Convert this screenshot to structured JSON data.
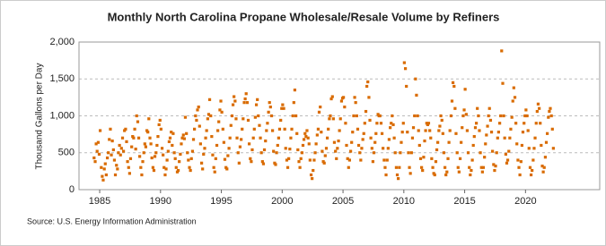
{
  "chart_data": {
    "type": "scatter",
    "title": "Monthly North Carolina Propane Wholesale/Resale Volume by Refiners",
    "y_label": "Thousand Gallons per Day",
    "source": "Source: U.S. Energy Information Administration",
    "color": "#d96b00",
    "grid": true,
    "xlim": [
      1983.3,
      2026.1
    ],
    "xticks": [
      1985,
      1990,
      1995,
      2000,
      2005,
      2010,
      2015,
      2020
    ],
    "ylim": [
      0,
      2000
    ],
    "yticks": [
      0,
      500,
      {
        "value": 1000,
        "label": "1,000"
      },
      {
        "value": 1500,
        "label": "1,500"
      },
      {
        "value": 2000,
        "label": "2,000"
      }
    ],
    "x": [
      1984.54,
      1984.63,
      1984.71,
      1984.79,
      1984.88,
      1984.96,
      1985.04,
      1985.13,
      1985.21,
      1985.29,
      1985.38,
      1985.46,
      1985.54,
      1985.63,
      1985.71,
      1985.79,
      1985.88,
      1985.96,
      1986.04,
      1986.13,
      1986.21,
      1986.29,
      1986.38,
      1986.46,
      1986.54,
      1986.63,
      1986.71,
      1986.79,
      1986.88,
      1986.96,
      1987.04,
      1987.13,
      1987.21,
      1987.29,
      1987.38,
      1987.46,
      1987.54,
      1987.63,
      1987.71,
      1987.79,
      1987.88,
      1987.96,
      1988.04,
      1988.13,
      1988.21,
      1988.29,
      1988.38,
      1988.46,
      1988.54,
      1988.63,
      1988.71,
      1988.79,
      1988.88,
      1988.96,
      1989.04,
      1989.13,
      1989.21,
      1989.29,
      1989.38,
      1989.46,
      1989.54,
      1989.63,
      1989.71,
      1989.79,
      1989.88,
      1989.96,
      1990.04,
      1990.13,
      1990.21,
      1990.29,
      1990.38,
      1990.46,
      1990.54,
      1990.63,
      1990.71,
      1990.79,
      1990.88,
      1990.96,
      1991.04,
      1991.13,
      1991.21,
      1991.29,
      1991.38,
      1991.46,
      1991.54,
      1991.63,
      1991.71,
      1991.79,
      1991.88,
      1991.96,
      1992.04,
      1992.13,
      1992.21,
      1992.29,
      1992.38,
      1992.46,
      1992.54,
      1992.63,
      1992.71,
      1992.79,
      1992.88,
      1992.96,
      1993.04,
      1993.13,
      1993.21,
      1993.29,
      1993.38,
      1993.46,
      1993.54,
      1993.63,
      1993.71,
      1993.79,
      1993.88,
      1993.96,
      1994.04,
      1994.13,
      1994.21,
      1994.29,
      1994.38,
      1994.46,
      1994.54,
      1994.63,
      1994.71,
      1994.79,
      1994.88,
      1994.96,
      1995.04,
      1995.13,
      1995.21,
      1995.29,
      1995.38,
      1995.46,
      1995.54,
      1995.63,
      1995.71,
      1995.79,
      1995.88,
      1995.96,
      1996.04,
      1996.13,
      1996.21,
      1996.29,
      1996.38,
      1996.46,
      1996.54,
      1996.63,
      1996.71,
      1996.79,
      1996.88,
      1996.96,
      1997.04,
      1997.13,
      1997.21,
      1997.29,
      1997.38,
      1997.46,
      1997.54,
      1997.63,
      1997.71,
      1997.79,
      1997.88,
      1997.96,
      1998.04,
      1998.13,
      1998.21,
      1998.29,
      1998.38,
      1998.46,
      1998.54,
      1998.63,
      1998.71,
      1998.79,
      1998.88,
      1998.96,
      1999.04,
      1999.13,
      1999.21,
      1999.29,
      1999.38,
      1999.46,
      1999.54,
      1999.63,
      1999.71,
      1999.79,
      1999.88,
      1999.96,
      2000.04,
      2000.13,
      2000.21,
      2000.29,
      2000.38,
      2000.46,
      2000.54,
      2000.63,
      2000.71,
      2000.79,
      2000.88,
      2000.96,
      2001.04,
      2001.13,
      2001.21,
      2001.29,
      2001.38,
      2001.46,
      2001.54,
      2001.63,
      2001.71,
      2001.79,
      2001.88,
      2001.96,
      2002.04,
      2002.13,
      2002.21,
      2002.29,
      2002.38,
      2002.46,
      2002.54,
      2002.63,
      2002.71,
      2002.79,
      2002.88,
      2002.96,
      2003.04,
      2003.13,
      2003.21,
      2003.29,
      2003.38,
      2003.46,
      2003.54,
      2003.63,
      2003.71,
      2003.79,
      2003.88,
      2003.96,
      2004.04,
      2004.13,
      2004.21,
      2004.29,
      2004.38,
      2004.46,
      2004.54,
      2004.63,
      2004.71,
      2004.79,
      2004.88,
      2004.96,
      2005.04,
      2005.13,
      2005.21,
      2005.29,
      2005.38,
      2005.46,
      2005.54,
      2005.63,
      2005.71,
      2005.79,
      2005.88,
      2005.96,
      2006.04,
      2006.13,
      2006.21,
      2006.29,
      2006.38,
      2006.46,
      2006.54,
      2006.63,
      2006.71,
      2006.79,
      2006.88,
      2006.96,
      2007.04,
      2007.13,
      2007.21,
      2007.29,
      2007.38,
      2007.46,
      2007.54,
      2007.63,
      2007.71,
      2007.79,
      2007.88,
      2007.96,
      2008.04,
      2008.13,
      2008.21,
      2008.29,
      2008.38,
      2008.46,
      2008.54,
      2008.63,
      2008.71,
      2008.79,
      2008.88,
      2008.96,
      2009.04,
      2009.13,
      2009.21,
      2009.29,
      2009.38,
      2009.46,
      2009.54,
      2009.63,
      2009.71,
      2009.79,
      2009.88,
      2009.96,
      2010.04,
      2010.13,
      2010.21,
      2010.29,
      2010.38,
      2010.46,
      2010.54,
      2010.63,
      2010.71,
      2010.79,
      2010.88,
      2010.96,
      2011.04,
      2011.13,
      2011.21,
      2011.29,
      2011.38,
      2011.46,
      2011.54,
      2011.63,
      2011.71,
      2011.79,
      2011.88,
      2011.96,
      2012.04,
      2012.13,
      2012.21,
      2012.29,
      2012.38,
      2012.46,
      2012.54,
      2012.63,
      2012.71,
      2012.79,
      2012.88,
      2012.96,
      2013.04,
      2013.13,
      2013.21,
      2013.29,
      2013.38,
      2013.46,
      2013.54,
      2013.63,
      2013.71,
      2013.79,
      2013.88,
      2013.96,
      2014.04,
      2014.13,
      2014.21,
      2014.29,
      2014.38,
      2014.46,
      2014.54,
      2014.63,
      2014.71,
      2014.79,
      2014.88,
      2014.96,
      2015.04,
      2015.13,
      2015.21,
      2015.29,
      2015.38,
      2015.46,
      2015.54,
      2015.63,
      2015.71,
      2015.79,
      2015.88,
      2015.96,
      2016.04,
      2016.13,
      2016.21,
      2016.29,
      2016.38,
      2016.46,
      2016.54,
      2016.63,
      2016.71,
      2016.79,
      2016.88,
      2016.96,
      2017.04,
      2017.13,
      2017.21,
      2017.29,
      2017.38,
      2017.46,
      2017.54,
      2017.63,
      2017.71,
      2017.79,
      2017.88,
      2017.96,
      2018.04,
      2018.13,
      2018.21,
      2018.29,
      2018.38,
      2018.46,
      2018.54,
      2018.63,
      2018.71,
      2018.79,
      2018.88,
      2018.96,
      2019.04,
      2019.13,
      2019.21,
      2019.29,
      2019.38,
      2019.46,
      2019.54,
      2019.63,
      2019.71,
      2019.79,
      2019.88,
      2019.96,
      2020.04,
      2020.13,
      2020.21,
      2020.29,
      2020.38,
      2020.46,
      2020.54,
      2020.63,
      2020.71,
      2020.79,
      2020.88,
      2020.96,
      2021.04,
      2021.13,
      2021.21,
      2021.29,
      2021.38,
      2021.46,
      2021.54,
      2021.63,
      2021.71,
      2021.79,
      2021.88,
      2021.96,
      2022.04,
      2022.13,
      2022.21,
      2022.29
    ],
    "values": [
      430,
      380,
      620,
      520,
      640,
      480,
      800,
      300,
      180,
      130,
      280,
      350,
      200,
      430,
      500,
      680,
      820,
      470,
      660,
      540,
      400,
      200,
      330,
      280,
      500,
      600,
      470,
      560,
      700,
      520,
      800,
      820,
      650,
      380,
      300,
      220,
      420,
      580,
      720,
      700,
      820,
      550,
      1000,
      920,
      700,
      450,
      300,
      200,
      380,
      500,
      620,
      580,
      800,
      780,
      960,
      700,
      620,
      430,
      300,
      260,
      450,
      500,
      600,
      720,
      880,
      940,
      820,
      560,
      470,
      300,
      200,
      280,
      400,
      520,
      650,
      700,
      780,
      600,
      760,
      500,
      420,
      300,
      240,
      260,
      380,
      480,
      620,
      700,
      740,
      690,
      980,
      760,
      500,
      400,
      300,
      260,
      420,
      520,
      680,
      820,
      1000,
      940,
      1080,
      1120,
      860,
      620,
      360,
      280,
      480,
      560,
      700,
      800,
      960,
      1020,
      1220,
      1000,
      720,
      470,
      300,
      240,
      420,
      600,
      800,
      920,
      1080,
      1200,
      1050,
      820,
      640,
      410,
      300,
      280,
      460,
      560,
      700,
      870,
      1000,
      1150,
      1260,
      1200,
      960,
      700,
      500,
      360,
      580,
      680,
      820,
      960,
      1180,
      1230,
      1300,
      1180,
      940,
      620,
      420,
      380,
      540,
      700,
      820,
      980,
      1150,
      1220,
      1000,
      870,
      700,
      500,
      380,
      350,
      540,
      660,
      800,
      900,
      1050,
      1180,
      1120,
      1000,
      800,
      520,
      360,
      340,
      500,
      600,
      700,
      820,
      940,
      1100,
      1150,
      1100,
      820,
      560,
      400,
      300,
      420,
      550,
      700,
      820,
      1000,
      1180,
      1350,
      1000,
      760,
      540,
      380,
      300,
      420,
      500,
      600,
      680,
      760,
      720,
      800,
      700,
      620,
      400,
      200,
      150,
      260,
      400,
      500,
      620,
      740,
      820,
      1050,
      1120,
      780,
      520,
      380,
      360,
      460,
      560,
      700,
      820,
      960,
      1000,
      1230,
      1260,
      960,
      640,
      520,
      420,
      560,
      660,
      800,
      960,
      1200,
      1240,
      1250,
      1120,
      900,
      600,
      420,
      300,
      400,
      520,
      640,
      780,
      1000,
      1250,
      1180,
      1000,
      820,
      600,
      500,
      400,
      560,
      680,
      760,
      900,
      1060,
      1400,
      1460,
      1250,
      940,
      700,
      560,
      380,
      500,
      640,
      760,
      900,
      1020,
      1000,
      1000,
      900,
      760,
      560,
      400,
      300,
      200,
      400,
      560,
      680,
      840,
      900,
      1000,
      880,
      700,
      500,
      300,
      200,
      150,
      300,
      500,
      640,
      780,
      900,
      1720,
      1640,
      1400,
      780,
      500,
      300,
      220,
      500,
      700,
      840,
      1000,
      1500,
      1280,
      1000,
      800,
      600,
      420,
      300,
      260,
      440,
      660,
      800,
      900,
      880,
      900,
      800,
      700,
      420,
      300,
      220,
      200,
      380,
      540,
      640,
      800,
      860,
      1000,
      940,
      760,
      500,
      300,
      200,
      240,
      420,
      640,
      800,
      1000,
      1200,
      1450,
      1400,
      1100,
      760,
      500,
      300,
      240,
      420,
      640,
      840,
      1000,
      1080,
      1360,
      1020,
      800,
      500,
      300,
      200,
      260,
      400,
      600,
      720,
      840,
      900,
      1100,
      1000,
      800,
      500,
      300,
      240,
      300,
      440,
      620,
      740,
      860,
      1000,
      1100,
      940,
      780,
      520,
      340,
      260,
      320,
      500,
      700,
      780,
      900,
      1000,
      1880,
      1440,
      1000,
      700,
      480,
      360,
      400,
      520,
      700,
      820,
      980,
      1200,
      1380,
      1250,
      900,
      620,
      400,
      300,
      200,
      380,
      600,
      780,
      900,
      1000,
      1080,
      1000,
      800,
      560,
      300,
      200,
      260,
      400,
      560,
      700,
      900,
      1060,
      1160,
      1100,
      900,
      600,
      320,
      240,
      300,
      440,
      640,
      760,
      980,
      1060,
      1100,
      1000,
      820,
      560
    ]
  }
}
